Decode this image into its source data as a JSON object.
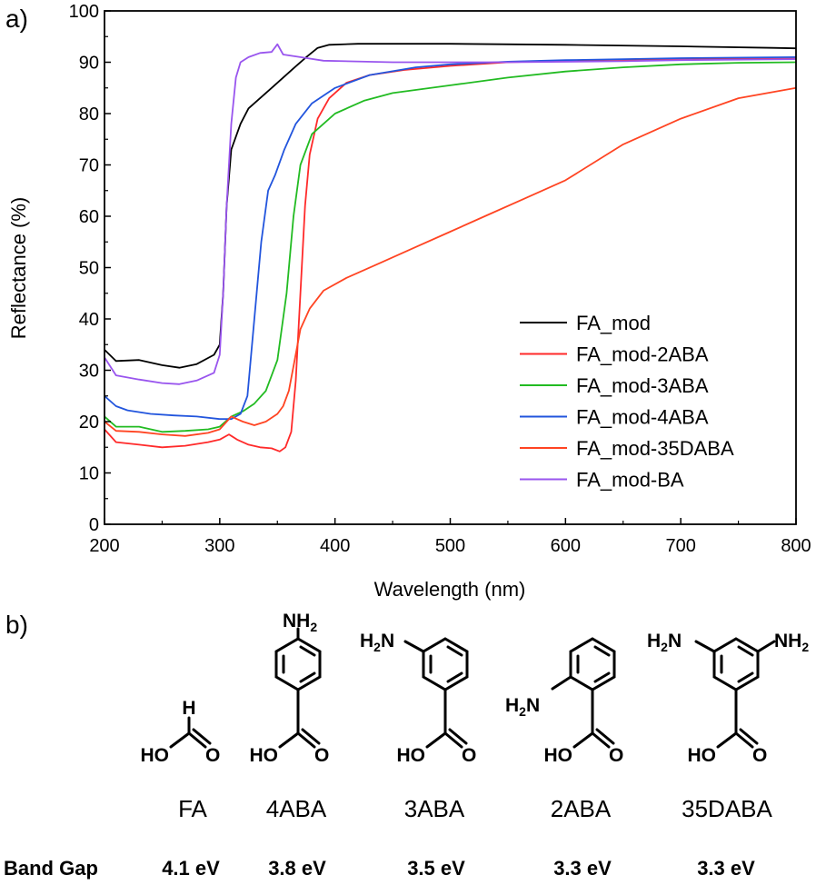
{
  "panels": {
    "a_label": "a)",
    "b_label": "b)"
  },
  "chart_data": {
    "type": "line",
    "xlabel": "Wavelength (nm)",
    "ylabel": "Reflectance (%)",
    "xlim": [
      200,
      800
    ],
    "ylim": [
      0,
      100
    ],
    "xticks": [
      "200",
      "300",
      "400",
      "500",
      "600",
      "700",
      "800"
    ],
    "yticks": [
      "0",
      "10",
      "20",
      "30",
      "40",
      "50",
      "60",
      "70",
      "80",
      "90",
      "100"
    ],
    "grid": false,
    "legend_position": "bottom-right",
    "series": [
      {
        "name": "FA_mod",
        "color": "#000000",
        "points": [
          [
            200,
            34
          ],
          [
            210,
            31.8
          ],
          [
            230,
            32
          ],
          [
            250,
            31
          ],
          [
            265,
            30.5
          ],
          [
            280,
            31.2
          ],
          [
            295,
            33
          ],
          [
            300,
            35
          ],
          [
            303,
            45
          ],
          [
            306,
            62
          ],
          [
            310,
            73
          ],
          [
            318,
            78
          ],
          [
            325,
            81
          ],
          [
            335,
            83
          ],
          [
            345,
            85
          ],
          [
            355,
            87
          ],
          [
            365,
            89
          ],
          [
            375,
            91
          ],
          [
            385,
            92.8
          ],
          [
            395,
            93.4
          ],
          [
            420,
            93.6
          ],
          [
            500,
            93.6
          ],
          [
            600,
            93.4
          ],
          [
            700,
            93.1
          ],
          [
            780,
            92.8
          ],
          [
            800,
            92.7
          ]
        ]
      },
      {
        "name": "FA_mod-2ABA",
        "color": "#ff2a2a",
        "points": [
          [
            200,
            18.5
          ],
          [
            210,
            16
          ],
          [
            230,
            15.5
          ],
          [
            250,
            15
          ],
          [
            270,
            15.3
          ],
          [
            290,
            16
          ],
          [
            300,
            16.5
          ],
          [
            308,
            17.5
          ],
          [
            315,
            16.5
          ],
          [
            325,
            15.5
          ],
          [
            335,
            15
          ],
          [
            345,
            14.8
          ],
          [
            352,
            14.2
          ],
          [
            357,
            15
          ],
          [
            362,
            18
          ],
          [
            366,
            28
          ],
          [
            370,
            45
          ],
          [
            374,
            62
          ],
          [
            378,
            72
          ],
          [
            385,
            79
          ],
          [
            395,
            83
          ],
          [
            410,
            86
          ],
          [
            430,
            87.5
          ],
          [
            460,
            88.5
          ],
          [
            500,
            89.3
          ],
          [
            550,
            90
          ],
          [
            600,
            90.3
          ],
          [
            650,
            90.5
          ],
          [
            700,
            90.6
          ],
          [
            800,
            90.7
          ]
        ]
      },
      {
        "name": "FA_mod-3ABA",
        "color": "#22bb22",
        "points": [
          [
            200,
            21
          ],
          [
            210,
            19
          ],
          [
            230,
            19
          ],
          [
            250,
            18
          ],
          [
            270,
            18.2
          ],
          [
            290,
            18.5
          ],
          [
            300,
            19
          ],
          [
            310,
            21
          ],
          [
            320,
            22
          ],
          [
            330,
            23.5
          ],
          [
            340,
            26
          ],
          [
            350,
            32
          ],
          [
            358,
            45
          ],
          [
            364,
            60
          ],
          [
            370,
            70
          ],
          [
            380,
            76
          ],
          [
            400,
            80
          ],
          [
            425,
            82.5
          ],
          [
            450,
            84
          ],
          [
            500,
            85.5
          ],
          [
            550,
            87
          ],
          [
            600,
            88.2
          ],
          [
            650,
            89
          ],
          [
            700,
            89.6
          ],
          [
            750,
            89.9
          ],
          [
            800,
            90
          ]
        ]
      },
      {
        "name": "FA_mod-4ABA",
        "color": "#2255dd",
        "points": [
          [
            200,
            25
          ],
          [
            210,
            23
          ],
          [
            220,
            22.2
          ],
          [
            240,
            21.5
          ],
          [
            260,
            21.2
          ],
          [
            280,
            21
          ],
          [
            300,
            20.5
          ],
          [
            310,
            20.5
          ],
          [
            318,
            21.5
          ],
          [
            324,
            25
          ],
          [
            330,
            40
          ],
          [
            336,
            55
          ],
          [
            342,
            65
          ],
          [
            348,
            68
          ],
          [
            356,
            73
          ],
          [
            366,
            78
          ],
          [
            380,
            82
          ],
          [
            400,
            85
          ],
          [
            430,
            87.5
          ],
          [
            470,
            89
          ],
          [
            500,
            89.6
          ],
          [
            550,
            90.1
          ],
          [
            600,
            90.4
          ],
          [
            650,
            90.6
          ],
          [
            700,
            90.8
          ],
          [
            800,
            91
          ]
        ]
      },
      {
        "name": "FA_mod-35DABA",
        "color": "#ff4422",
        "points": [
          [
            200,
            20
          ],
          [
            210,
            18.2
          ],
          [
            230,
            18
          ],
          [
            250,
            17.5
          ],
          [
            270,
            17.2
          ],
          [
            290,
            17.8
          ],
          [
            300,
            18.5
          ],
          [
            310,
            21
          ],
          [
            320,
            20
          ],
          [
            330,
            19.3
          ],
          [
            340,
            20
          ],
          [
            350,
            21.5
          ],
          [
            355,
            23
          ],
          [
            360,
            26
          ],
          [
            365,
            32
          ],
          [
            370,
            38
          ],
          [
            378,
            42
          ],
          [
            390,
            45.5
          ],
          [
            410,
            48
          ],
          [
            440,
            51
          ],
          [
            470,
            54
          ],
          [
            500,
            57
          ],
          [
            530,
            60
          ],
          [
            560,
            63
          ],
          [
            600,
            67
          ],
          [
            650,
            74
          ],
          [
            700,
            79
          ],
          [
            750,
            83
          ],
          [
            800,
            85
          ]
        ]
      },
      {
        "name": "FA_mod-BA",
        "color": "#9955ee",
        "points": [
          [
            200,
            32.5
          ],
          [
            210,
            29
          ],
          [
            230,
            28.2
          ],
          [
            250,
            27.5
          ],
          [
            265,
            27.3
          ],
          [
            280,
            28
          ],
          [
            295,
            29.5
          ],
          [
            300,
            33
          ],
          [
            303,
            45
          ],
          [
            306,
            62
          ],
          [
            310,
            78
          ],
          [
            314,
            87
          ],
          [
            318,
            90
          ],
          [
            325,
            91
          ],
          [
            335,
            91.8
          ],
          [
            345,
            92
          ],
          [
            350,
            93.5
          ],
          [
            355,
            91.5
          ],
          [
            370,
            91
          ],
          [
            390,
            90.3
          ],
          [
            450,
            90
          ],
          [
            550,
            90
          ],
          [
            650,
            90.2
          ],
          [
            700,
            90.4
          ],
          [
            800,
            90.6
          ]
        ]
      }
    ]
  },
  "compounds": [
    {
      "name": "FA",
      "band_gap": "4.1 eV"
    },
    {
      "name": "4ABA",
      "band_gap": "3.8 eV"
    },
    {
      "name": "3ABA",
      "band_gap": "3.5 eV"
    },
    {
      "name": "2ABA",
      "band_gap": "3.3 eV"
    },
    {
      "name": "35DABA",
      "band_gap": "3.3 eV"
    }
  ],
  "band_gap_label": "Band Gap",
  "structures": {
    "HO": "HO",
    "O": "O",
    "H": "H",
    "NH2": "NH",
    "H2N": "H",
    "N": "N",
    "sub2": "2"
  }
}
